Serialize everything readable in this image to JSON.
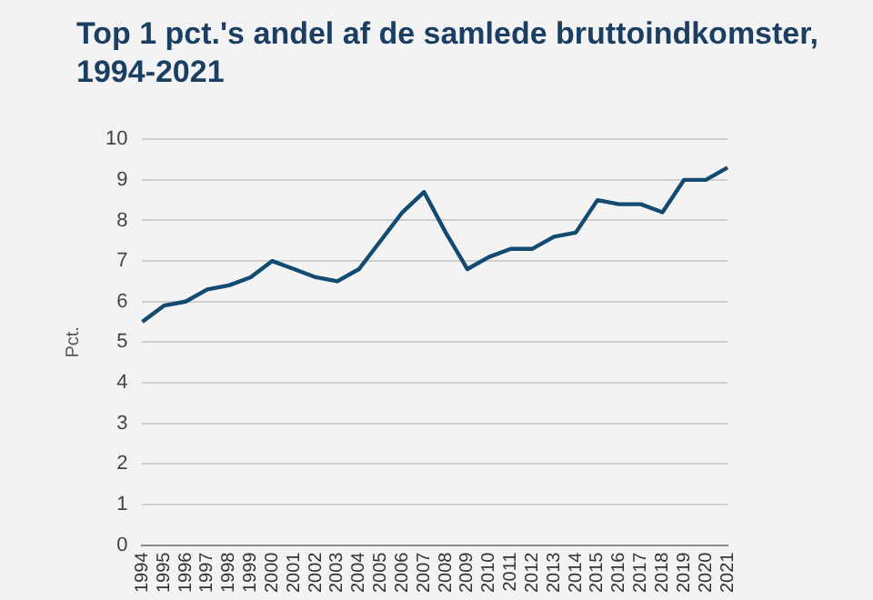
{
  "chart_data": {
    "type": "line",
    "title": "Top 1 pct.'s andel af de samlede bruttoindkomster, 1994-2021",
    "ylabel": "Pct.",
    "categories": [
      "1994",
      "1995",
      "1996",
      "1997",
      "1998",
      "1999",
      "2000",
      "2001",
      "2002",
      "2003",
      "2004",
      "2005",
      "2006",
      "2007",
      "2008",
      "2009",
      "2010",
      "2011",
      "2012",
      "2013",
      "2014",
      "2015",
      "2016",
      "2017",
      "2018",
      "2019",
      "2020",
      "2021"
    ],
    "series": [
      {
        "color": "#134a72",
        "values": [
          5.5,
          5.9,
          6.0,
          6.3,
          6.4,
          6.6,
          7.0,
          6.8,
          6.6,
          6.5,
          6.8,
          7.5,
          8.2,
          8.7,
          7.7,
          6.8,
          7.1,
          7.3,
          7.3,
          7.6,
          7.7,
          8.5,
          8.4,
          8.4,
          8.2,
          9.0,
          9.0,
          9.3
        ]
      }
    ],
    "ylim": [
      0,
      10
    ],
    "yticks": [
      0,
      1,
      2,
      3,
      4,
      5,
      6,
      7,
      8,
      9,
      10
    ],
    "grid": "y",
    "legend": false,
    "marker": "none",
    "line_style": "solid"
  }
}
